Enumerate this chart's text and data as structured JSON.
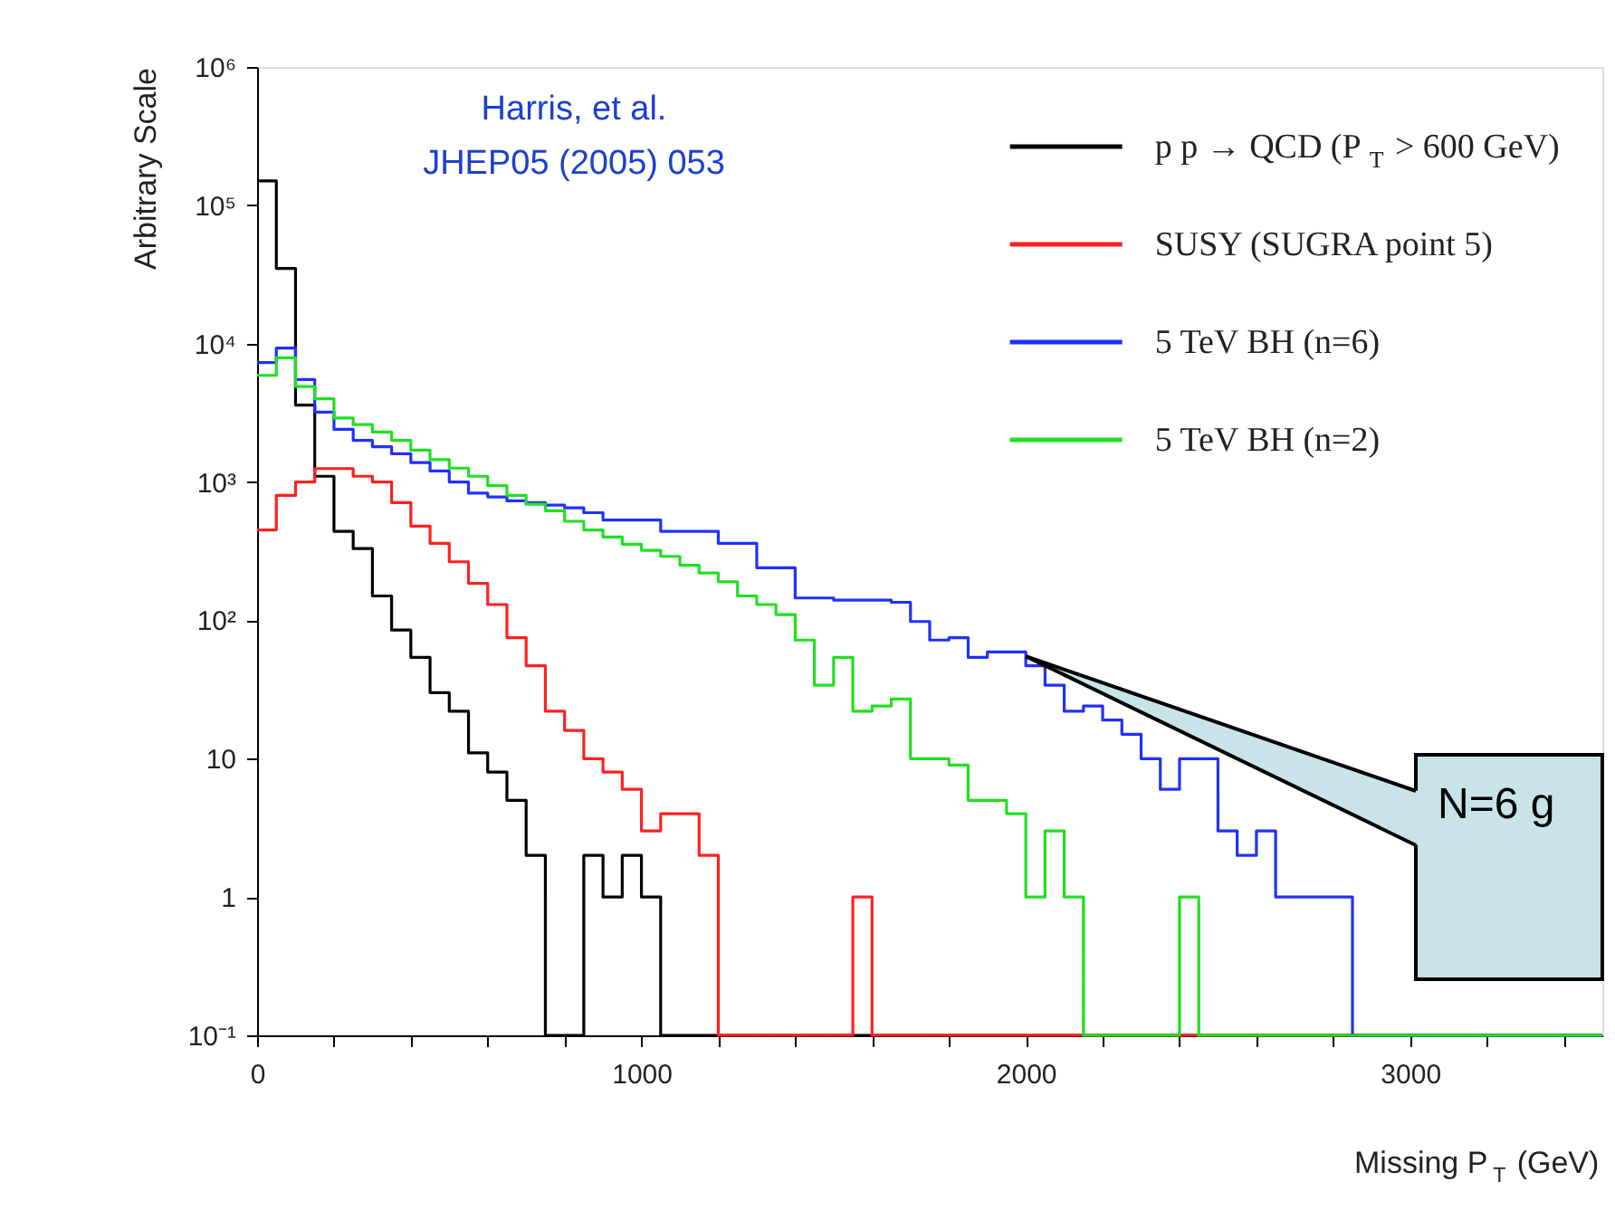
{
  "chart_data": {
    "type": "histogram",
    "xlabel": "Missing P$_{T}$ (GeV)",
    "ylabel": "Arbitrary Scale",
    "bins": [
      0,
      50,
      100,
      150,
      200,
      250,
      300,
      350,
      400,
      450,
      500,
      550,
      600,
      650,
      700,
      750,
      800,
      850,
      900,
      950,
      1000,
      1050,
      1100,
      1150,
      1200,
      1250,
      1300,
      1350,
      1400,
      1450,
      1500,
      1550,
      1600,
      1650,
      1700,
      1750,
      1800,
      1850,
      1900,
      1950,
      2000,
      2050,
      2100,
      2150,
      2200,
      2250,
      2300,
      2350,
      2400,
      2450,
      2500,
      2550,
      2600,
      2650,
      2700,
      2750,
      2800,
      2850,
      2900,
      2950,
      3000,
      3050,
      3100,
      3150,
      3200,
      3250,
      3300,
      3350,
      3400,
      3450,
      3500
    ],
    "series": [
      {
        "name": "p p → QCD (P$_{T}$ > 600 GeV)",
        "color": "#000000",
        "values": [
          150000,
          35000,
          3600,
          1100,
          440,
          330,
          150,
          85,
          54,
          30,
          22,
          11,
          8,
          5,
          2,
          0.1,
          0.1,
          2,
          1,
          2,
          1,
          0.1,
          0.1,
          0.1,
          0.1,
          0.1,
          0.1,
          0.1,
          0.1,
          0.1,
          0.1,
          0.1,
          0.1,
          0.1,
          0.1,
          0.1,
          0.1,
          0.1,
          0.1,
          0.1,
          0.1,
          0.1,
          0.1,
          0.1,
          0.1,
          0.1,
          0.1,
          0.1,
          0.1,
          0.1,
          0.1,
          0.1,
          0.1,
          0.1,
          0.1,
          0.1,
          0.1,
          0.1,
          0.1,
          0.1,
          0.1,
          0.1,
          0.1,
          0.1,
          0.1,
          0.1,
          0.1,
          0.1,
          0.1,
          0.1
        ]
      },
      {
        "name": "SUSY (SUGRA point 5)",
        "color": "#ff2020",
        "values": [
          450,
          800,
          1000,
          1250,
          1250,
          1100,
          1000,
          710,
          480,
          360,
          265,
          185,
          130,
          75,
          47,
          22,
          16,
          10,
          8,
          6,
          3,
          4,
          4,
          2,
          0.1,
          0.1,
          0.1,
          0.1,
          0.1,
          0.1,
          0.1,
          1,
          0.1,
          0.1,
          0.1,
          0.1,
          0.1,
          0.1,
          0.1,
          0.1,
          0.1,
          0.1,
          0.1,
          0.1,
          0.1,
          0.1,
          0.1,
          0.1,
          0.1,
          0.1,
          0.1,
          0.1,
          0.1,
          0.1,
          0.1,
          0.1,
          0.1,
          0.1,
          0.1,
          0.1,
          0.1,
          0.1,
          0.1,
          0.1,
          0.1,
          0.1,
          0.1,
          0.1,
          0.1,
          0.1
        ]
      },
      {
        "name": "5 TeV BH (n=6)",
        "color": "#2030ff",
        "values": [
          7300,
          9300,
          5500,
          3200,
          2400,
          2000,
          1800,
          1600,
          1380,
          1200,
          1000,
          830,
          780,
          730,
          710,
          680,
          650,
          600,
          530,
          530,
          530,
          440,
          440,
          440,
          360,
          360,
          240,
          240,
          145,
          145,
          140,
          140,
          140,
          135,
          98,
          72,
          75,
          54,
          59,
          59,
          47,
          34,
          22,
          24,
          19,
          15,
          10,
          6,
          10,
          10,
          3,
          2,
          3,
          1,
          1,
          1,
          1,
          0.1,
          0.1,
          0.1,
          0.1,
          0.1,
          0.1,
          0.1,
          0.1,
          0.1,
          0.1,
          0.1,
          0.1,
          0.1
        ]
      },
      {
        "name": "5 TeV BH (n=2)",
        "color": "#20e020",
        "values": [
          5900,
          7900,
          4900,
          4000,
          2900,
          2600,
          2300,
          2000,
          1700,
          1450,
          1260,
          1100,
          940,
          800,
          690,
          620,
          520,
          450,
          400,
          355,
          320,
          290,
          250,
          220,
          190,
          150,
          130,
          110,
          72,
          34,
          54,
          22,
          24,
          27,
          10,
          10,
          9,
          5,
          5,
          4,
          1,
          3,
          1,
          0.1,
          0.1,
          0.1,
          0.1,
          0.1,
          1,
          0.1,
          0.1,
          0.1,
          0.1,
          0.1,
          0.1,
          0.1,
          0.1,
          0.1,
          0.1,
          0.1,
          0.1,
          0.1,
          0.1,
          0.1,
          0.1,
          0.1,
          0.1,
          0.1,
          0.1,
          0.1
        ]
      }
    ],
    "xlim": [
      0,
      3500
    ],
    "xticks": [
      0,
      {
        "value": 200,
        "label": null
      },
      {
        "value": 400,
        "label": null
      },
      {
        "value": 600,
        "label": null
      },
      {
        "value": 800,
        "label": null
      },
      1000,
      {
        "value": 1200,
        "label": null
      },
      {
        "value": 1400,
        "label": null
      },
      {
        "value": 1600,
        "label": null
      },
      {
        "value": 1800,
        "label": null
      },
      2000,
      {
        "value": 2200,
        "label": null
      },
      {
        "value": 2400,
        "label": null
      },
      {
        "value": 2600,
        "label": null
      },
      {
        "value": 2800,
        "label": null
      },
      3000,
      {
        "value": 3200,
        "label": null
      },
      {
        "value": 3400,
        "label": null
      }
    ],
    "ylim": [
      0.1,
      1000000
    ],
    "log": true,
    "yticks": [
      {
        "value": 0.1,
        "label": "10⁻¹"
      },
      1,
      10,
      {
        "value": 100,
        "label": "10²"
      },
      {
        "value": 1000,
        "label": "10³"
      },
      {
        "value": 10000,
        "label": "10⁴"
      },
      {
        "value": 100000,
        "label": "10⁵"
      },
      {
        "value": 1000000,
        "label": "10⁶"
      }
    ],
    "grid": false,
    "legend": "top right",
    "marker": "none",
    "line_style": "solid",
    "annotations": [
      "Harris, et al.\nJHEP05 (2005) 053",
      {
        "text": "N=6 g",
        "x": 2000,
        "y": 55
      }
    ]
  }
}
